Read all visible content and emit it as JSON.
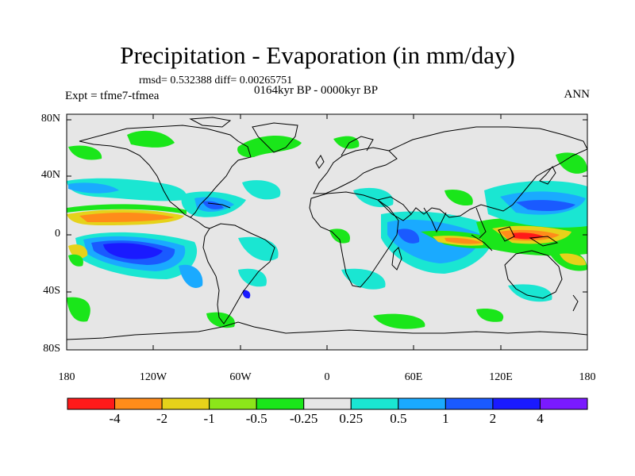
{
  "title": "Precipitation - Evaporation (in mm/day)",
  "stats": "rmsd= 0.532388 diff= 0.00265751",
  "period": "0164kyr BP - 0000kyr BP",
  "experiment": "Expt = tfme7-tfmea",
  "season": "ANN",
  "lat_labels": [
    "80N",
    "40N",
    "0",
    "40S",
    "80S"
  ],
  "lon_labels": [
    "180",
    "120W",
    "60W",
    "0",
    "60E",
    "120E",
    "180"
  ],
  "colorbar": {
    "labels": [
      "-4",
      "-2",
      "-1",
      "-0.5",
      "-0.25",
      "0.25",
      "0.5",
      "1",
      "2",
      "4"
    ],
    "colors": [
      "#ff1a1a",
      "#ff8c1a",
      "#e6d21a",
      "#8ce61a",
      "#1ae61a",
      "#e6e6e6",
      "#1ae6d2",
      "#1aaaff",
      "#1a5aff",
      "#1a1aff",
      "#7a1aff"
    ]
  },
  "colors": {
    "land_background": "#e6e6e6",
    "coastline": "#000000"
  }
}
